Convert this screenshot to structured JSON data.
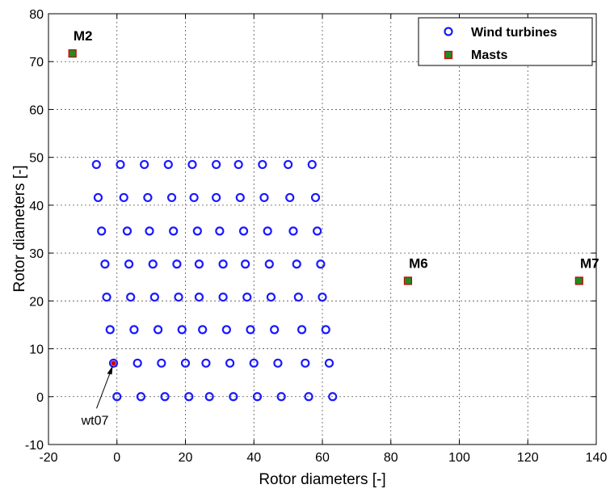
{
  "chart_data": {
    "type": "scatter",
    "xlabel": "Rotor diameters [-]",
    "ylabel": "Rotor diameters [-]",
    "xlim": [
      -20,
      140
    ],
    "ylim": [
      -10,
      80
    ],
    "xticks": [
      -20,
      0,
      20,
      40,
      60,
      80,
      100,
      120,
      140
    ],
    "yticks": [
      -10,
      0,
      10,
      20,
      30,
      40,
      50,
      60,
      70,
      80
    ],
    "grid": true,
    "legend_position": "top-right",
    "series": [
      {
        "name": "Wind turbines",
        "marker": "open-circle",
        "color": "#1a1aff",
        "rows": [
          {
            "y": 0,
            "x": [
              0,
              7,
              14,
              21,
              27,
              34,
              41,
              48,
              56,
              63
            ]
          },
          {
            "y": 7,
            "x": [
              -1,
              6,
              13,
              20,
              26,
              33,
              40,
              47,
              55,
              62
            ]
          },
          {
            "y": 14,
            "x": [
              -2,
              5,
              12,
              19,
              25,
              32,
              39,
              46,
              54,
              61
            ]
          },
          {
            "y": 20.8,
            "x": [
              -3,
              4,
              11,
              18,
              24,
              31,
              38,
              45,
              53,
              60
            ]
          },
          {
            "y": 27.7,
            "x": [
              -3.5,
              3.5,
              10.5,
              17.5,
              24,
              31,
              37.5,
              44.5,
              52.5,
              59.5
            ]
          },
          {
            "y": 34.6,
            "x": [
              -4.5,
              3,
              9.5,
              16.5,
              23.5,
              30,
              37,
              44,
              51.5,
              58.5
            ]
          },
          {
            "y": 41.6,
            "x": [
              -5.5,
              2,
              9,
              16,
              22.5,
              29,
              36,
              43,
              50.5,
              58
            ]
          },
          {
            "y": 48.5,
            "x": [
              -6,
              1,
              8,
              15,
              22,
              29,
              35.5,
              42.5,
              50,
              57
            ]
          }
        ]
      },
      {
        "name": "Masts",
        "marker": "filled-square",
        "color": "#228b22",
        "edge_color": "#cc0000",
        "points": [
          {
            "label": "M2",
            "x": -13,
            "y": 71.7
          },
          {
            "label": "M6",
            "x": 85,
            "y": 24.2
          },
          {
            "label": "M7",
            "x": 135,
            "y": 24.2
          }
        ]
      }
    ],
    "annotations": [
      {
        "text": "wt07",
        "x": -1,
        "y": 7,
        "highlight_color": "#cc0000"
      }
    ]
  }
}
